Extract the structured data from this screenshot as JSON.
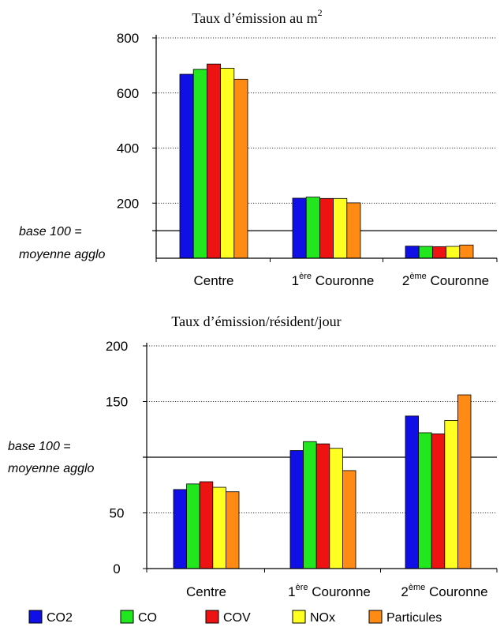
{
  "chart_data": [
    {
      "type": "bar",
      "title": "Taux d’émission au m",
      "title_superscript": "2",
      "categories": [
        {
          "prefix": "",
          "sup": "",
          "suffix": "Centre"
        },
        {
          "prefix": "1",
          "sup": "ère",
          "suffix": " Couronne"
        },
        {
          "prefix": "2",
          "sup": "ème",
          "suffix": " Couronne"
        }
      ],
      "yticks": [
        "800",
        "600",
        "400",
        "200"
      ],
      "ylim": [
        0,
        800
      ],
      "grid": "dotted",
      "reference_line": {
        "value": 100,
        "label_line1": "base 100 =",
        "label_line2": "moyenne agglo"
      },
      "series": [
        {
          "name": "CO2",
          "values": [
            668,
            218,
            44
          ]
        },
        {
          "name": "CO",
          "values": [
            686,
            222,
            43
          ]
        },
        {
          "name": "COV",
          "values": [
            705,
            217,
            42
          ]
        },
        {
          "name": "NOx",
          "values": [
            690,
            217,
            43
          ]
        },
        {
          "name": "Particules",
          "values": [
            650,
            201,
            48
          ]
        }
      ]
    },
    {
      "type": "bar",
      "title": "Taux d’émission/résident/jour",
      "categories": [
        {
          "prefix": "",
          "sup": "",
          "suffix": "Centre"
        },
        {
          "prefix": "1",
          "sup": "ère",
          "suffix": " Couronne"
        },
        {
          "prefix": "2",
          "sup": "ème",
          "suffix": " Couronne"
        }
      ],
      "yticks": [
        "200",
        "150",
        "50",
        "0"
      ],
      "ylim": [
        0,
        200
      ],
      "grid": "dotted",
      "reference_line": {
        "value": 100,
        "label_line1": "base 100 =",
        "label_line2": "moyenne agglo"
      },
      "series": [
        {
          "name": "CO2",
          "values": [
            71,
            106,
            137
          ]
        },
        {
          "name": "CO",
          "values": [
            76,
            114,
            122
          ]
        },
        {
          "name": "COV",
          "values": [
            78,
            112,
            121
          ]
        },
        {
          "name": "NOx",
          "values": [
            73,
            108,
            133
          ]
        },
        {
          "name": "Particules",
          "values": [
            69,
            88,
            156
          ]
        }
      ]
    }
  ],
  "legend": [
    {
      "label": "CO2",
      "color": "#1010e6"
    },
    {
      "label": "CO",
      "color": "#22e61e"
    },
    {
      "label": "COV",
      "color": "#ee1313"
    },
    {
      "label": "NOx",
      "color": "#ffff22"
    },
    {
      "label": "Particules",
      "color": "#ff8a14"
    }
  ]
}
